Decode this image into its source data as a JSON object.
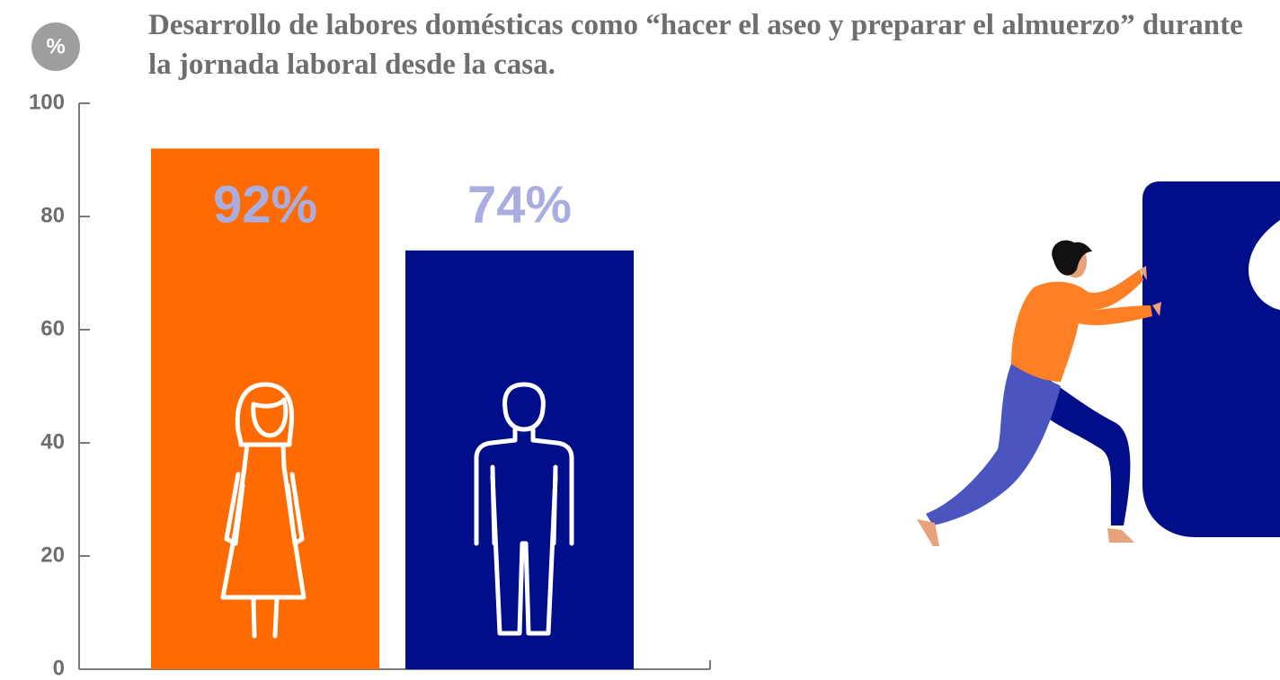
{
  "chart_data": {
    "type": "bar",
    "title": "Desarrollo de labores domésticas como “hacer el aseo y preparar el almuerzo” durante la jornada laboral desde la casa.",
    "y_axis_label": "%",
    "categories": [
      null,
      null
    ],
    "values": [
      92,
      74
    ],
    "value_labels": [
      "92%",
      "74%"
    ],
    "colors": [
      "#ff6b00",
      "#000e8a"
    ],
    "value_label_color": "#a9ade0",
    "ylim": [
      0,
      100
    ],
    "yticks": [
      0,
      20,
      40,
      60,
      80,
      100
    ],
    "grid": false
  }
}
